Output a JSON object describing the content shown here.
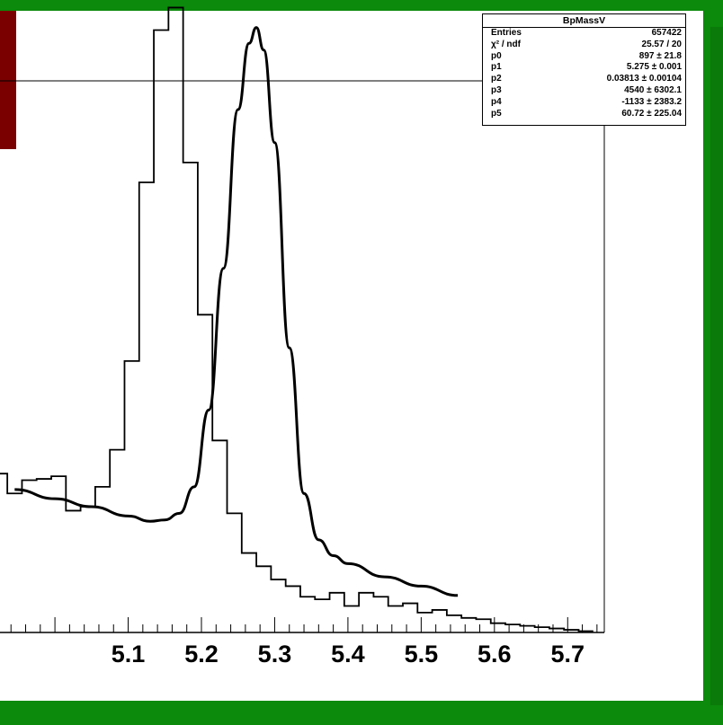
{
  "window": {
    "frame_color": "#0b8a0b",
    "accent_tab_color": "#7a0000",
    "canvas_color": "#ffffff"
  },
  "stats": {
    "title": "BpMassV",
    "rows": [
      {
        "label": "Entries",
        "value": "657422"
      },
      {
        "label": "χ² / ndf",
        "value": "25.57 / 20"
      },
      {
        "label": "p0",
        "value": "897 ± 21.8"
      },
      {
        "label": "p1",
        "value": "5.275 ± 0.001"
      },
      {
        "label": "p2",
        "value": "0.03813 ± 0.00104"
      },
      {
        "label": "p3",
        "value": "4540 ± 6302.1"
      },
      {
        "label": "p4",
        "value": "-1133 ± 2383.2"
      },
      {
        "label": "p5",
        "value": "60.72 ± 225.04"
      }
    ]
  },
  "chart_data": {
    "type": "line",
    "title": "",
    "xlabel": "",
    "ylabel": "",
    "xlim": [
      4.925,
      5.75
    ],
    "ylim": [
      0,
      500
    ],
    "x_ticks": [
      "5.1",
      "5.2",
      "5.3",
      "5.4",
      "5.5",
      "5.6",
      "5.7"
    ],
    "x_tick_values": [
      5.1,
      5.2,
      5.3,
      5.4,
      5.5,
      5.6,
      5.7
    ],
    "grid": false,
    "series": [
      {
        "kind": "histogram",
        "bin_width": 0.02,
        "bin_edges_start": 4.925,
        "values": [
          145,
          120,
          105,
          115,
          116,
          118,
          92,
          95,
          110,
          138,
          205,
          340,
          455,
          472,
          355,
          240,
          145,
          90,
          60,
          50,
          40,
          35,
          27,
          25,
          30,
          20,
          30,
          27,
          20,
          22,
          15,
          17,
          13,
          11,
          10,
          7,
          6,
          5,
          4,
          3,
          2,
          1
        ]
      },
      {
        "kind": "fit",
        "x": [
          4.945,
          5.0,
          5.05,
          5.1,
          5.13,
          5.15,
          5.17,
          5.19,
          5.21,
          5.23,
          5.25,
          5.265,
          5.275,
          5.285,
          5.3,
          5.32,
          5.34,
          5.36,
          5.38,
          5.4,
          5.45,
          5.5,
          5.55
        ],
        "values": [
          108,
          101,
          95,
          88,
          84,
          85,
          90,
          110,
          168,
          275,
          395,
          445,
          457,
          440,
          370,
          215,
          105,
          70,
          58,
          52,
          42,
          35,
          28
        ]
      }
    ]
  }
}
